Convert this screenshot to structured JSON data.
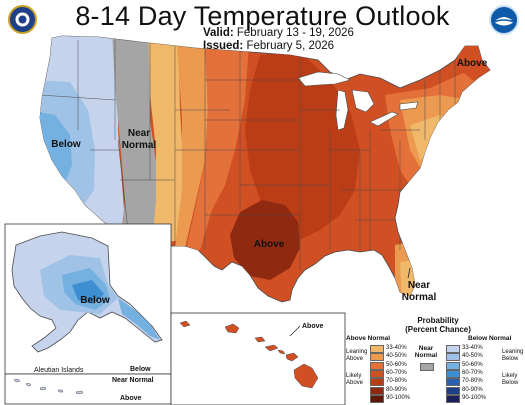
{
  "title": "8-14 Day Temperature Outlook",
  "valid_label": "Valid:",
  "valid_value": "February 13 - 19, 2026",
  "issued_label": "Issued:",
  "issued_value": "February 5, 2026",
  "map_labels": {
    "below_west": "Below",
    "near_normal_west_1": "Near",
    "near_normal_west_2": "Normal",
    "above_south": "Above",
    "above_northeast": "Above",
    "near_normal_florida_1": "Near",
    "near_normal_florida_2": "Normal",
    "below_alaska": "Below",
    "aleutian_islands": "Aleutian Islands",
    "aleutian_below": "Below",
    "aleutian_near_normal": "Near Normal",
    "aleutian_above": "Above",
    "hawaii_above": "Above"
  },
  "legend": {
    "title_1": "Probability",
    "title_2": "(Percent Chance)",
    "above_header": "Above Normal",
    "below_header": "Below Normal",
    "near_header_1": "Near",
    "near_header_2": "Normal",
    "leaning_above_1": "Leaning",
    "leaning_above_2": "Above",
    "likely_above_1": "Likely",
    "likely_above_2": "Above",
    "leaning_below_1": "Leaning",
    "leaning_below_2": "Below",
    "likely_below_1": "Likely",
    "likely_below_2": "Below",
    "above_bins": [
      {
        "label": "33-40%",
        "color": "#f0b86a"
      },
      {
        "label": "40-50%",
        "color": "#eb9a4f"
      },
      {
        "label": "50-60%",
        "color": "#e4703a"
      },
      {
        "label": "60-70%",
        "color": "#d04f23"
      },
      {
        "label": "70-80%",
        "color": "#bb3d16"
      },
      {
        "label": "80-90%",
        "color": "#8f2a10"
      },
      {
        "label": "90-100%",
        "color": "#5e180a"
      }
    ],
    "below_bins": [
      {
        "label": "33-40%",
        "color": "#c6d3ec"
      },
      {
        "label": "40-50%",
        "color": "#9fc2e6"
      },
      {
        "label": "50-60%",
        "color": "#74b1e0"
      },
      {
        "label": "60-70%",
        "color": "#3d8fd2"
      },
      {
        "label": "70-80%",
        "color": "#2a5fae"
      },
      {
        "label": "80-90%",
        "color": "#203d86"
      },
      {
        "label": "90-100%",
        "color": "#1b1f5a"
      }
    ],
    "near_color": "#a5a5a5"
  },
  "colors": {
    "near_normal": "#a5a5a5",
    "below_33_40": "#c6d3ec",
    "below_40_50": "#9fc2e6",
    "below_50_60": "#74b1e0",
    "above_33_40": "#f0b86a",
    "above_40_50": "#eb9a4f",
    "above_50_60": "#e4703a",
    "above_60_70": "#d04f23",
    "above_70_80": "#bb3d16",
    "above_80_90": "#8f2a10",
    "water": "#ffffff",
    "border": "#4a4a4a"
  }
}
